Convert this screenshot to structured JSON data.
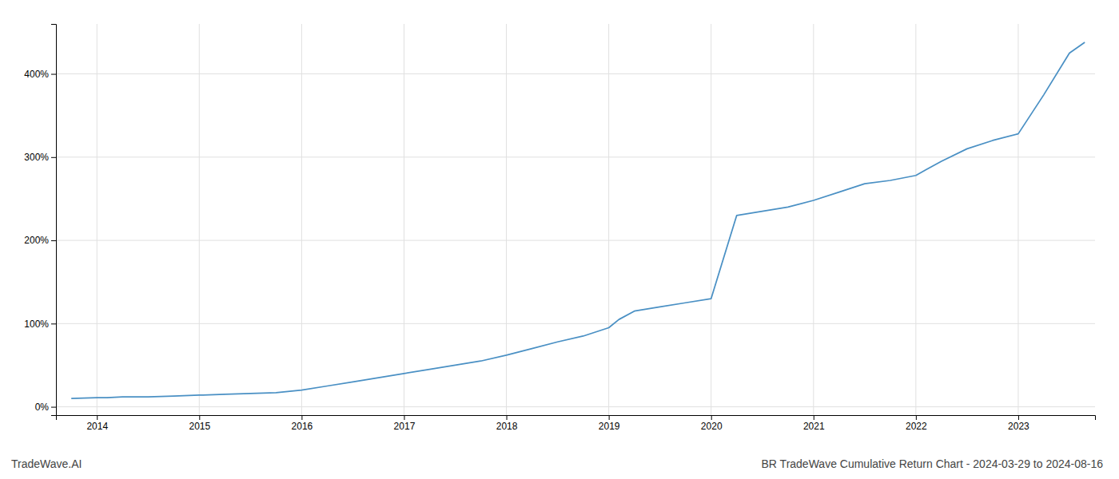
{
  "chart_data": {
    "type": "line",
    "title": "BR TradeWave Cumulative Return Chart - 2024-03-29 to 2024-08-16",
    "annotations": [
      "TradeWave.AI"
    ],
    "x": [
      2013.75,
      2014.0,
      2014.1,
      2014.25,
      2014.5,
      2014.75,
      2015.0,
      2015.25,
      2015.5,
      2015.75,
      2016.0,
      2016.25,
      2016.5,
      2016.75,
      2017.0,
      2017.25,
      2017.5,
      2017.75,
      2018.0,
      2018.25,
      2018.5,
      2018.75,
      2019.0,
      2019.1,
      2019.25,
      2019.5,
      2019.75,
      2020.0,
      2020.1,
      2020.25,
      2020.5,
      2020.75,
      2021.0,
      2021.25,
      2021.5,
      2021.75,
      2022.0,
      2022.1,
      2022.25,
      2022.5,
      2022.75,
      2023.0,
      2023.25,
      2023.5,
      2023.65
    ],
    "values": [
      10,
      11,
      11,
      12,
      12,
      13,
      14,
      15,
      16,
      17,
      20,
      25,
      30,
      35,
      40,
      45,
      50,
      55,
      62,
      70,
      78,
      85,
      95,
      105,
      115,
      120,
      125,
      130,
      170,
      230,
      235,
      240,
      248,
      258,
      268,
      272,
      278,
      285,
      295,
      310,
      320,
      328,
      375,
      425,
      438
    ],
    "color": "#4a90c4",
    "xlim": [
      2013.6,
      2023.75
    ],
    "xticks": [
      2014,
      2015,
      2016,
      2017,
      2018,
      2019,
      2020,
      2021,
      2022,
      2023
    ],
    "ylim": [
      -10,
      460
    ],
    "yticks": [
      {
        "value": 0,
        "label": "0%"
      },
      {
        "value": 100,
        "label": "100%"
      },
      {
        "value": 200,
        "label": "200%"
      },
      {
        "value": 300,
        "label": "300%"
      },
      {
        "value": 400,
        "label": "400%"
      }
    ],
    "grid": true
  }
}
